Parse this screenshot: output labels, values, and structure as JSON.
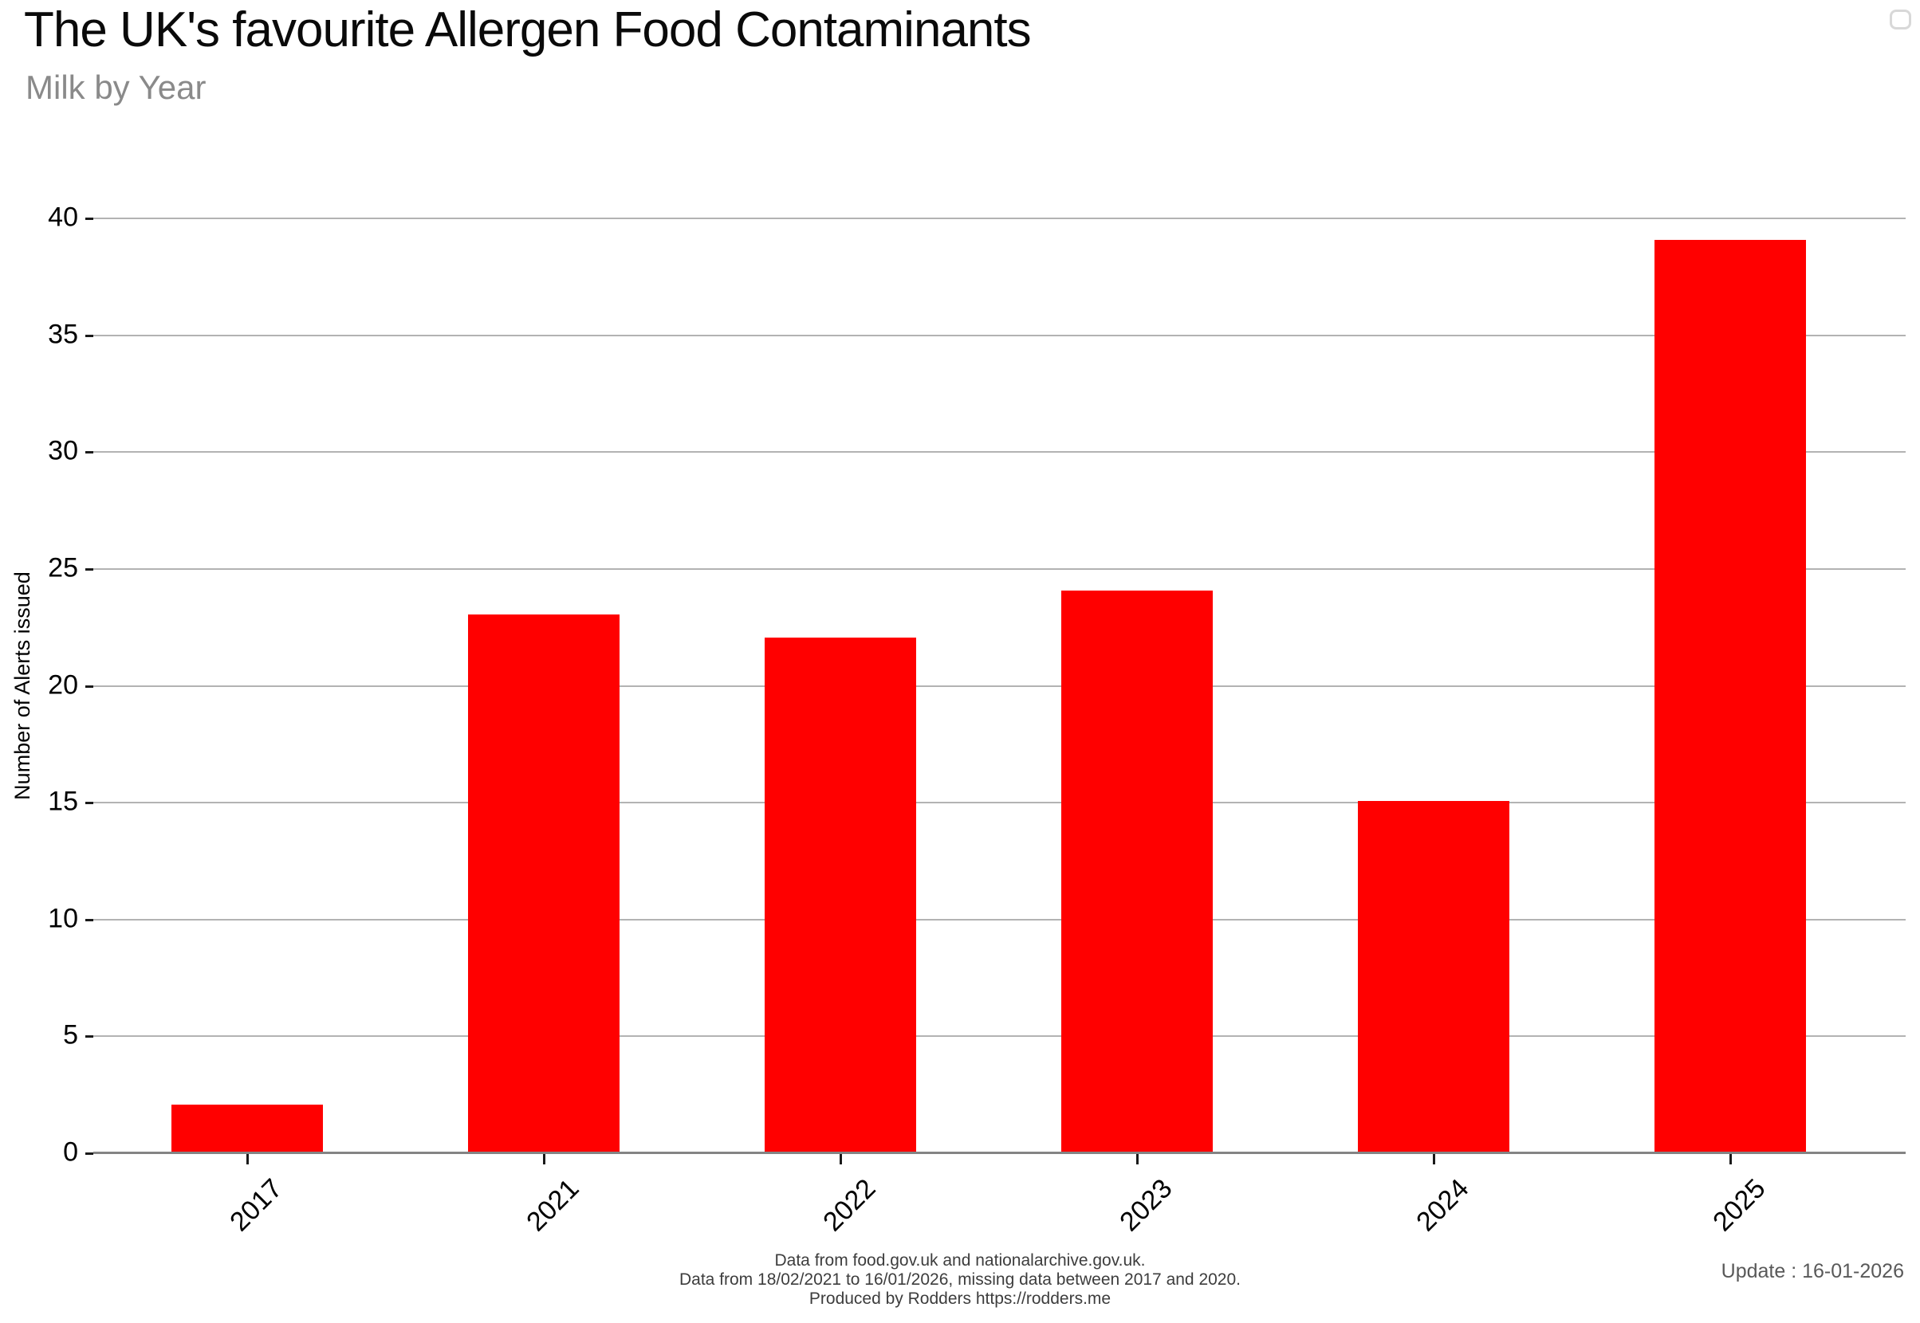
{
  "header": {
    "title": "The UK's favourite Allergen Food Contaminants",
    "subtitle": "Milk by Year"
  },
  "chart_data": {
    "type": "bar",
    "categories": [
      "2017",
      "2021",
      "2022",
      "2023",
      "2024",
      "2025"
    ],
    "values": [
      2,
      23,
      22,
      24,
      15,
      39
    ],
    "title": "The UK's favourite Allergen Food Contaminants",
    "subtitle": "Milk by Year",
    "xlabel": "",
    "ylabel": "Number of Alerts issued",
    "ylim": [
      0,
      40
    ],
    "yticks": [
      0,
      5,
      10,
      15,
      20,
      25,
      30,
      35,
      40
    ],
    "bar_color": "#ff0000",
    "gridline_color": "#b3b3b3",
    "axis_color": "#848484",
    "grid": true,
    "legend": "empty-box-top-right",
    "x_tick_rotation_deg": 45
  },
  "footer": {
    "caption_lines": [
      "Data from food.gov.uk and nationalarchive.gov.uk.",
      "Data from 18/02/2021 to 16/01/2026, missing data between 2017 and 2020.",
      "Produced by Rodders https://rodders.me"
    ],
    "update_text": "Update : 16-01-2026"
  }
}
